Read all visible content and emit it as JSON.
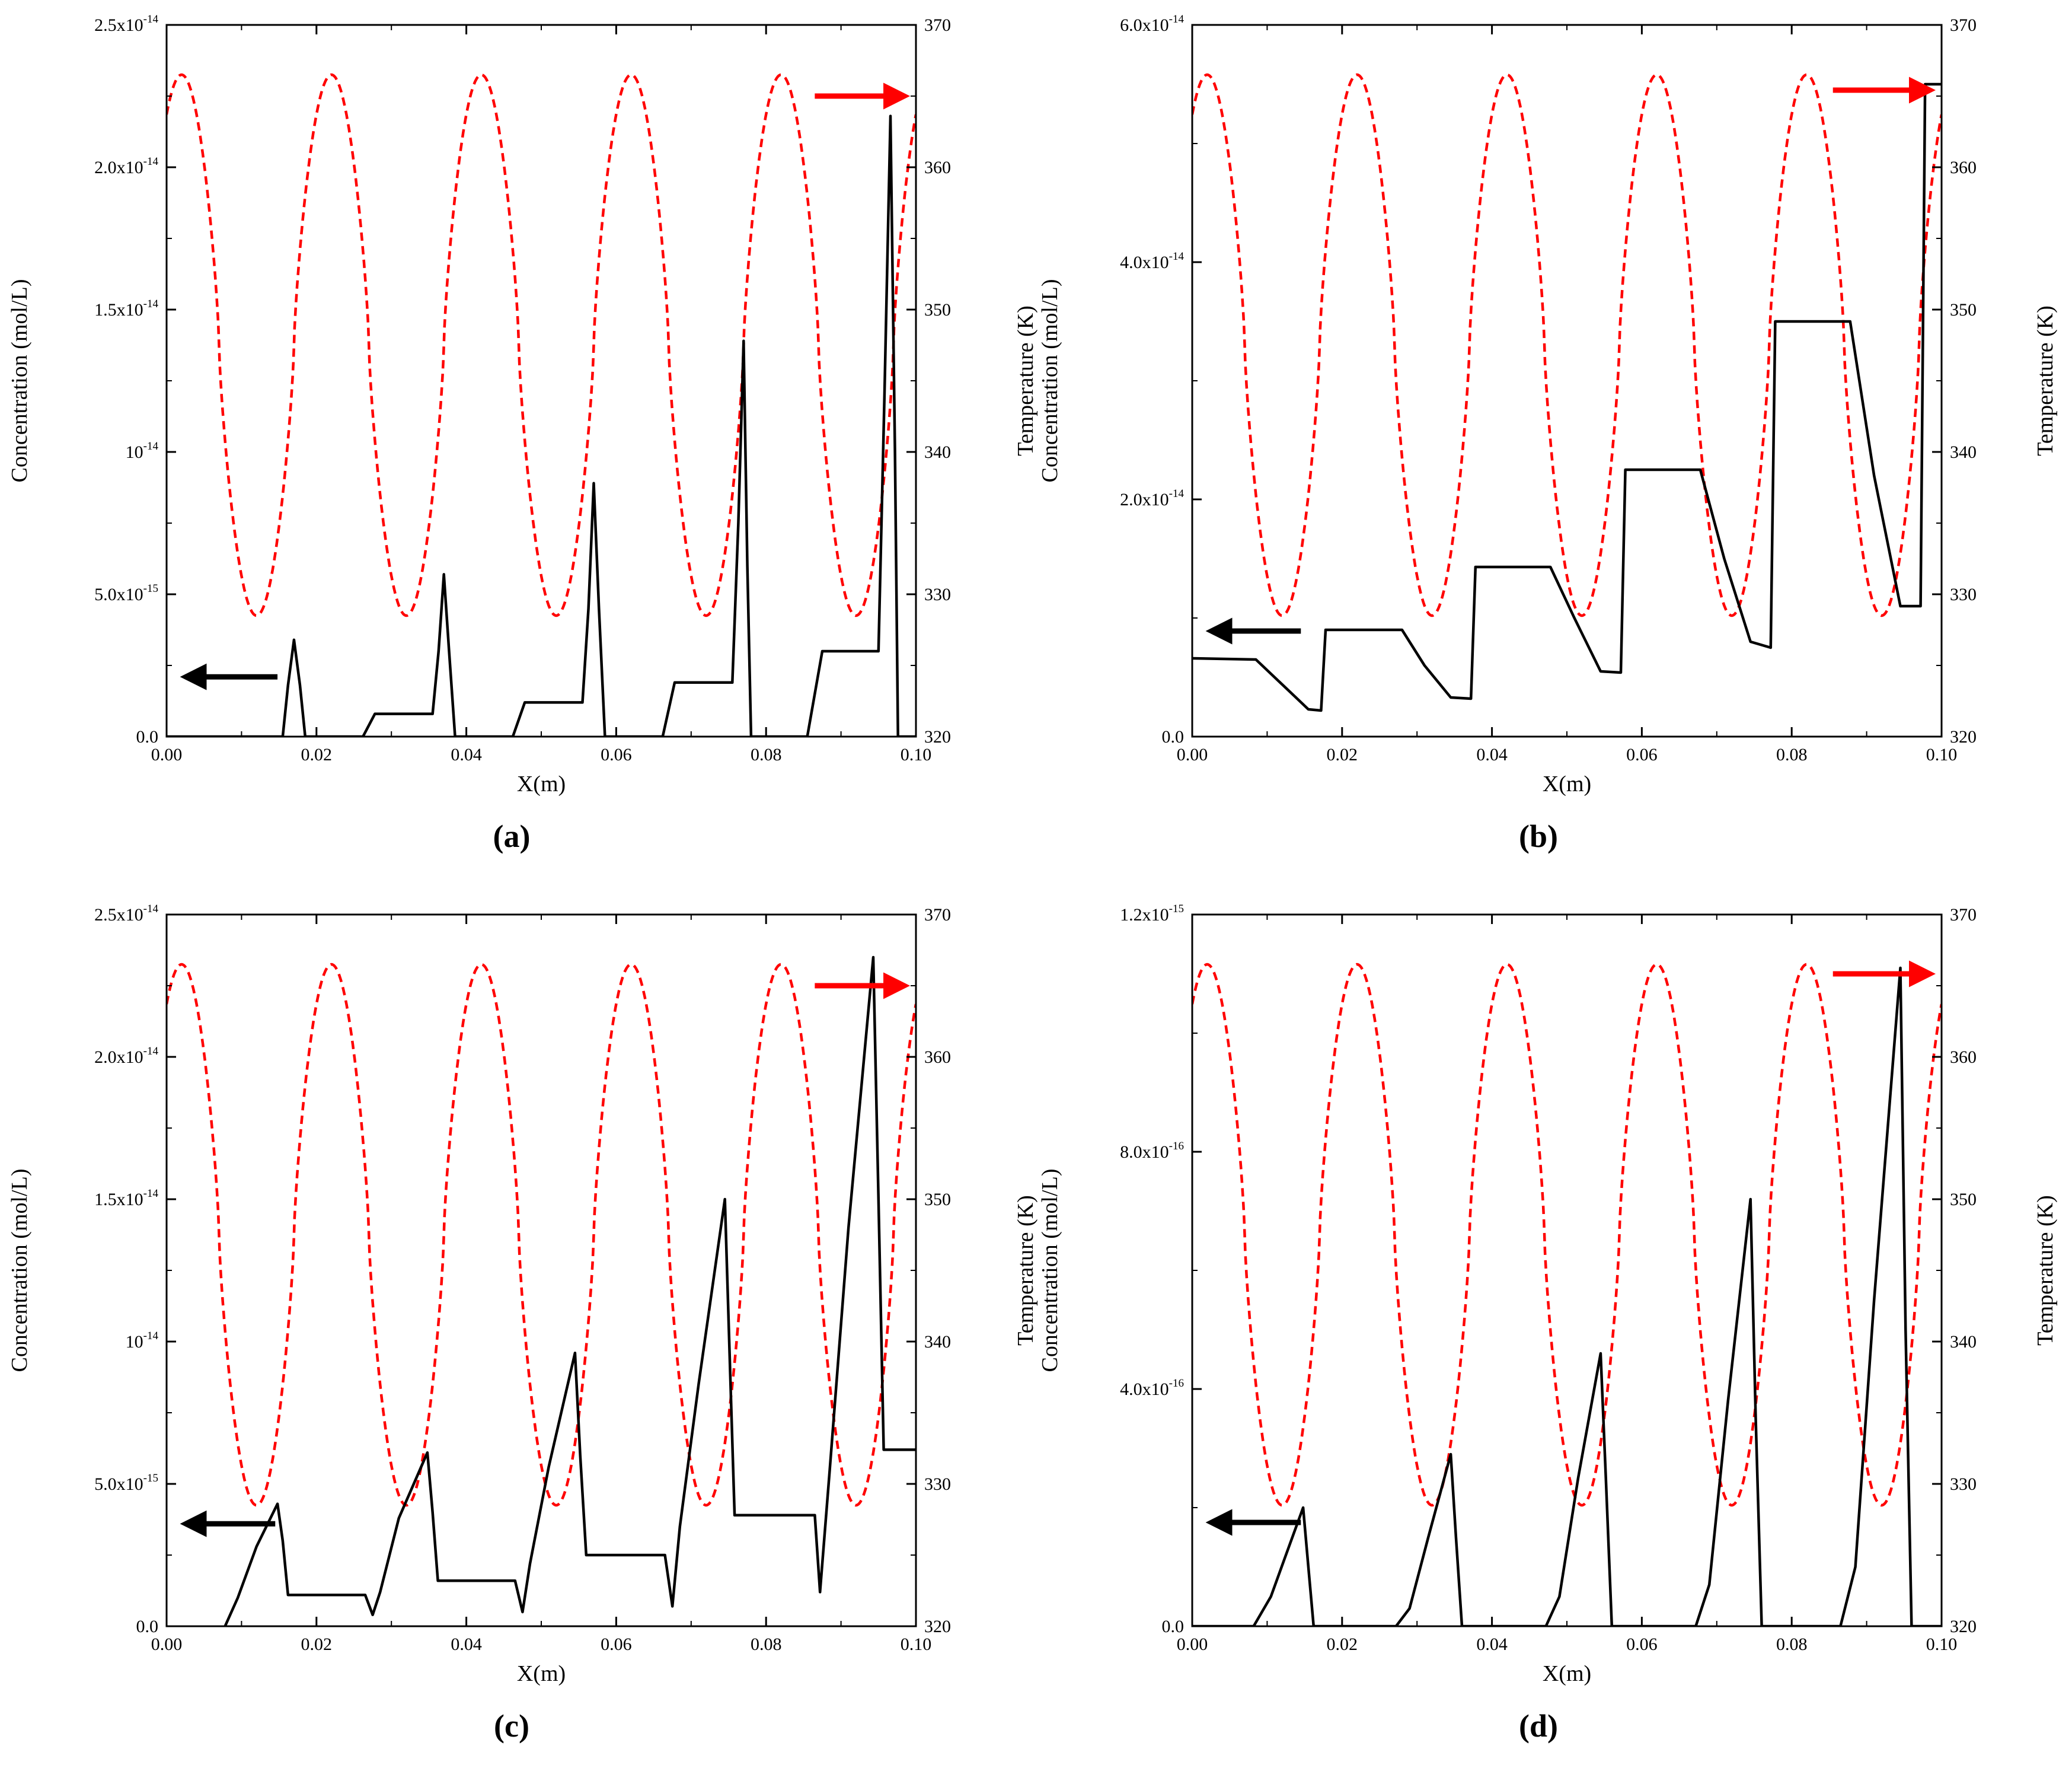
{
  "chart_data": [
    {
      "type": "line",
      "panel_label": "(a)",
      "xlabel": "X(m)",
      "ylabel": "Concentration (mol/L)",
      "y2label": "Temperature (K)",
      "xlim": [
        0,
        0.1
      ],
      "ylim": [
        0,
        2.5e-14
      ],
      "y2lim": [
        320,
        370
      ],
      "x_ticks": [
        "0.00",
        "0.02",
        "0.04",
        "0.06",
        "0.08",
        "0.10"
      ],
      "y_ticks": [
        {
          "mant": "0.0",
          "exp": ""
        },
        {
          "mant": "5.0x10",
          "exp": "-15"
        },
        {
          "mant": "10",
          "exp": "-14"
        },
        {
          "mant": "1.5x10",
          "exp": "-14"
        },
        {
          "mant": "2.0x10",
          "exp": "-14"
        },
        {
          "mant": "2.5x10",
          "exp": "-14"
        }
      ],
      "y2_ticks": [
        "320",
        "330",
        "340",
        "350",
        "360",
        "370"
      ],
      "series": [
        {
          "name": "Temperature",
          "axis": "right",
          "style": "dashed",
          "color": "#ff0000",
          "profile": {
            "kind": "cosine",
            "mean": 347.5,
            "amplitude": 19,
            "period": 0.02,
            "phase_x": 0.002
          }
        },
        {
          "name": "Concentration",
          "axis": "left",
          "style": "solid",
          "color": "#000000",
          "points": [
            [
              0,
              0
            ],
            [
              0.0155,
              0
            ],
            [
              0.0162,
              1.8e-15
            ],
            [
              0.017,
              3.4e-15
            ],
            [
              0.0178,
              1.8e-15
            ],
            [
              0.0185,
              0
            ],
            [
              0.0262,
              0
            ],
            [
              0.0278,
              8e-16
            ],
            [
              0.0355,
              8e-16
            ],
            [
              0.0363,
              3e-15
            ],
            [
              0.037,
              5.7e-15
            ],
            [
              0.0377,
              3e-15
            ],
            [
              0.0385,
              0
            ],
            [
              0.0462,
              0
            ],
            [
              0.0478,
              1.2e-15
            ],
            [
              0.0555,
              1.2e-15
            ],
            [
              0.0563,
              4.5e-15
            ],
            [
              0.057,
              8.9e-15
            ],
            [
              0.0577,
              4.5e-15
            ],
            [
              0.0585,
              0
            ],
            [
              0.0662,
              0
            ],
            [
              0.0678,
              1.9e-15
            ],
            [
              0.0755,
              1.9e-15
            ],
            [
              0.0763,
              7.5e-15
            ],
            [
              0.077,
              1.39e-14
            ],
            [
              0.0775,
              6e-15
            ],
            [
              0.078,
              0
            ],
            [
              0.0855,
              0
            ],
            [
              0.0875,
              3e-15
            ],
            [
              0.095,
              3e-15
            ],
            [
              0.0958,
              1.2e-14
            ],
            [
              0.0966,
              2.18e-14
            ],
            [
              0.0972,
              1e-14
            ],
            [
              0.0976,
              0
            ],
            [
              0.1,
              0
            ]
          ]
        }
      ],
      "arrows": [
        {
          "color": "#000000",
          "direction": "left",
          "x_from": 0.0148,
          "x_to": 0.0025,
          "y": 2.1e-15
        },
        {
          "color": "#ff0000",
          "direction": "right",
          "x_from": 0.0865,
          "x_to": 0.0985,
          "y": 2.25e-14
        }
      ]
    },
    {
      "type": "line",
      "panel_label": "(b)",
      "xlabel": "X(m)",
      "ylabel": "Concentration (mol/L)",
      "y2label": "Temperature (K)",
      "xlim": [
        0,
        0.1
      ],
      "ylim": [
        0,
        6e-14
      ],
      "y2lim": [
        320,
        370
      ],
      "x_ticks": [
        "0.00",
        "0.02",
        "0.04",
        "0.06",
        "0.08",
        "0.10"
      ],
      "y_ticks": [
        {
          "mant": "0.0",
          "exp": ""
        },
        {
          "mant": "2.0x10",
          "exp": "-14"
        },
        {
          "mant": "4.0x10",
          "exp": "-14"
        },
        {
          "mant": "6.0x10",
          "exp": "-14"
        }
      ],
      "y2_ticks": [
        "320",
        "330",
        "340",
        "350",
        "360",
        "370"
      ],
      "series": [
        {
          "name": "Temperature",
          "axis": "right",
          "style": "dashed",
          "color": "#ff0000",
          "profile": {
            "kind": "cosine",
            "mean": 347.5,
            "amplitude": 19,
            "period": 0.02,
            "phase_x": 0.002
          }
        },
        {
          "name": "Concentration",
          "axis": "left",
          "style": "solid",
          "color": "#000000",
          "points": [
            [
              0,
              6.6e-15
            ],
            [
              0.0085,
              6.5e-15
            ],
            [
              0.011,
              5e-15
            ],
            [
              0.014,
              3.2e-15
            ],
            [
              0.0155,
              2.3e-15
            ],
            [
              0.0172,
              2.2e-15
            ],
            [
              0.0178,
              9e-15
            ],
            [
              0.028,
              9e-15
            ],
            [
              0.031,
              6e-15
            ],
            [
              0.0345,
              3.3e-15
            ],
            [
              0.0372,
              3.2e-15
            ],
            [
              0.0378,
              1.43e-14
            ],
            [
              0.0478,
              1.43e-14
            ],
            [
              0.051,
              1e-14
            ],
            [
              0.0545,
              5.5e-15
            ],
            [
              0.0572,
              5.4e-15
            ],
            [
              0.0578,
              2.25e-14
            ],
            [
              0.0678,
              2.25e-14
            ],
            [
              0.071,
              1.5e-14
            ],
            [
              0.0745,
              8e-15
            ],
            [
              0.0772,
              7.5e-15
            ],
            [
              0.0778,
              3.5e-14
            ],
            [
              0.0878,
              3.5e-14
            ],
            [
              0.091,
              2.2e-14
            ],
            [
              0.0945,
              1.1e-14
            ],
            [
              0.0972,
              1.1e-14
            ],
            [
              0.0978,
              5.5e-14
            ],
            [
              0.1,
              5.5e-14
            ]
          ]
        }
      ],
      "arrows": [
        {
          "color": "#000000",
          "direction": "left",
          "x_from": 0.0145,
          "x_to": 0.0025,
          "y": 8.9e-15
        },
        {
          "color": "#ff0000",
          "direction": "right",
          "x_from": 0.0855,
          "x_to": 0.0985,
          "y": 5.45e-14
        }
      ]
    },
    {
      "type": "line",
      "panel_label": "(c)",
      "xlabel": "X(m)",
      "ylabel": "Concentration (mol/L)",
      "y2label": "Temperature (K)",
      "xlim": [
        0,
        0.1
      ],
      "ylim": [
        0,
        2.5e-14
      ],
      "y2lim": [
        320,
        370
      ],
      "x_ticks": [
        "0.00",
        "0.02",
        "0.04",
        "0.06",
        "0.08",
        "0.10"
      ],
      "y_ticks": [
        {
          "mant": "0.0",
          "exp": ""
        },
        {
          "mant": "5.0x10",
          "exp": "-15"
        },
        {
          "mant": "10",
          "exp": "-14"
        },
        {
          "mant": "1.5x10",
          "exp": "-14"
        },
        {
          "mant": "2.0x10",
          "exp": "-14"
        },
        {
          "mant": "2.5x10",
          "exp": "-14"
        }
      ],
      "y2_ticks": [
        "320",
        "330",
        "340",
        "350",
        "360",
        "370"
      ],
      "series": [
        {
          "name": "Temperature",
          "axis": "right",
          "style": "dashed",
          "color": "#ff0000",
          "profile": {
            "kind": "cosine",
            "mean": 347.5,
            "amplitude": 19,
            "period": 0.02,
            "phase_x": 0.002
          }
        },
        {
          "name": "Concentration",
          "axis": "left",
          "style": "solid",
          "color": "#000000",
          "points": [
            [
              0.0078,
              0
            ],
            [
              0.0095,
              1e-15
            ],
            [
              0.012,
              2.8e-15
            ],
            [
              0.0148,
              4.3e-15
            ],
            [
              0.0155,
              3e-15
            ],
            [
              0.0162,
              1.1e-15
            ],
            [
              0.0265,
              1.1e-15
            ],
            [
              0.0275,
              4e-16
            ],
            [
              0.0285,
              1.2e-15
            ],
            [
              0.031,
              3.8e-15
            ],
            [
              0.0348,
              6.1e-15
            ],
            [
              0.0355,
              4e-15
            ],
            [
              0.0362,
              1.6e-15
            ],
            [
              0.0465,
              1.6e-15
            ],
            [
              0.0475,
              5e-16
            ],
            [
              0.0485,
              2.2e-15
            ],
            [
              0.051,
              5.6e-15
            ],
            [
              0.0545,
              9.6e-15
            ],
            [
              0.0552,
              6e-15
            ],
            [
              0.056,
              2.5e-15
            ],
            [
              0.0665,
              2.5e-15
            ],
            [
              0.0675,
              7e-16
            ],
            [
              0.0685,
              3.5e-15
            ],
            [
              0.071,
              8.5e-15
            ],
            [
              0.0745,
              1.5e-14
            ],
            [
              0.0752,
              9e-15
            ],
            [
              0.0758,
              3.9e-15
            ],
            [
              0.0865,
              3.9e-15
            ],
            [
              0.0872,
              1.2e-15
            ],
            [
              0.0885,
              5.5e-15
            ],
            [
              0.091,
              1.4e-14
            ],
            [
              0.0943,
              2.35e-14
            ],
            [
              0.095,
              1.5e-14
            ],
            [
              0.0957,
              6.2e-15
            ],
            [
              0.1,
              6.2e-15
            ]
          ]
        }
      ],
      "arrows": [
        {
          "color": "#000000",
          "direction": "left",
          "x_from": 0.0145,
          "x_to": 0.0025,
          "y": 3.6e-15
        },
        {
          "color": "#ff0000",
          "direction": "right",
          "x_from": 0.0865,
          "x_to": 0.0985,
          "y": 2.25e-14
        }
      ]
    },
    {
      "type": "line",
      "panel_label": "(d)",
      "xlabel": "X(m)",
      "ylabel": "Concentration (mol/L)",
      "y2label": "Temperature (K)",
      "xlim": [
        0,
        0.1
      ],
      "ylim": [
        0,
        1.2e-15
      ],
      "y2lim": [
        320,
        370
      ],
      "x_ticks": [
        "0.00",
        "0.02",
        "0.04",
        "0.06",
        "0.08",
        "0.10"
      ],
      "y_ticks": [
        {
          "mant": "0.0",
          "exp": ""
        },
        {
          "mant": "4.0x10",
          "exp": "-16"
        },
        {
          "mant": "8.0x10",
          "exp": "-16"
        },
        {
          "mant": "1.2x10",
          "exp": "-15"
        }
      ],
      "y2_ticks": [
        "320",
        "330",
        "340",
        "350",
        "360",
        "370"
      ],
      "series": [
        {
          "name": "Temperature",
          "axis": "right",
          "style": "dashed",
          "color": "#ff0000",
          "profile": {
            "kind": "cosine",
            "mean": 347.5,
            "amplitude": 19,
            "period": 0.02,
            "phase_x": 0.002
          }
        },
        {
          "name": "Concentration",
          "axis": "left",
          "style": "solid",
          "color": "#000000",
          "points": [
            [
              0,
              0
            ],
            [
              0.0082,
              0
            ],
            [
              0.0105,
              5e-17
            ],
            [
              0.0125,
              1.2e-16
            ],
            [
              0.0148,
              2e-16
            ],
            [
              0.0155,
              1e-16
            ],
            [
              0.0162,
              0
            ],
            [
              0.0272,
              0
            ],
            [
              0.029,
              3e-17
            ],
            [
              0.0315,
              1.5e-16
            ],
            [
              0.0345,
              2.9e-16
            ],
            [
              0.0352,
              1.5e-16
            ],
            [
              0.036,
              0
            ],
            [
              0.0472,
              0
            ],
            [
              0.049,
              5e-17
            ],
            [
              0.0515,
              2.5e-16
            ],
            [
              0.0545,
              4.6e-16
            ],
            [
              0.0552,
              2.5e-16
            ],
            [
              0.056,
              0
            ],
            [
              0.0672,
              0
            ],
            [
              0.069,
              7e-17
            ],
            [
              0.0715,
              3.8e-16
            ],
            [
              0.0745,
              7.2e-16
            ],
            [
              0.0752,
              3.5e-16
            ],
            [
              0.076,
              0
            ],
            [
              0.0865,
              0
            ],
            [
              0.0885,
              1e-16
            ],
            [
              0.091,
              5.5e-16
            ],
            [
              0.0945,
              1.11e-15
            ],
            [
              0.0952,
              5e-16
            ],
            [
              0.096,
              0
            ],
            [
              0.1,
              0
            ]
          ]
        }
      ],
      "arrows": [
        {
          "color": "#000000",
          "direction": "left",
          "x_from": 0.0145,
          "x_to": 0.0025,
          "y": 1.75e-16
        },
        {
          "color": "#ff0000",
          "direction": "right",
          "x_from": 0.0855,
          "x_to": 0.0985,
          "y": 1.1e-15
        }
      ]
    }
  ]
}
